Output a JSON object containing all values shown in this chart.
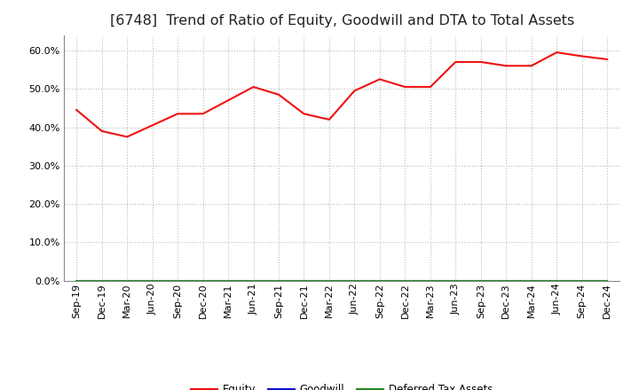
{
  "title": "[6748]  Trend of Ratio of Equity, Goodwill and DTA to Total Assets",
  "x_labels": [
    "Sep-19",
    "Dec-19",
    "Mar-20",
    "Jun-20",
    "Sep-20",
    "Dec-20",
    "Mar-21",
    "Jun-21",
    "Sep-21",
    "Dec-21",
    "Mar-22",
    "Jun-22",
    "Sep-22",
    "Dec-22",
    "Mar-23",
    "Jun-23",
    "Sep-23",
    "Dec-23",
    "Mar-24",
    "Jun-24",
    "Sep-24",
    "Dec-24"
  ],
  "equity": [
    0.445,
    0.39,
    0.375,
    0.405,
    0.435,
    0.435,
    0.47,
    0.505,
    0.485,
    0.435,
    0.42,
    0.495,
    0.525,
    0.505,
    0.505,
    0.57,
    0.57,
    0.56,
    0.56,
    0.595,
    0.585,
    0.577
  ],
  "goodwill": [
    0.0,
    0.0,
    0.0,
    0.0,
    0.0,
    0.0,
    0.0,
    0.0,
    0.0,
    0.0,
    0.0,
    0.0,
    0.0,
    0.0,
    0.0,
    0.0,
    0.0,
    0.0,
    0.0,
    0.0,
    0.0,
    0.0
  ],
  "dta": [
    0.0,
    0.0,
    0.0,
    0.0,
    0.0,
    0.0,
    0.0,
    0.0,
    0.0,
    0.0,
    0.0,
    0.0,
    0.0,
    0.0,
    0.0,
    0.0,
    0.0,
    0.0,
    0.0,
    0.0,
    0.0,
    0.0
  ],
  "equity_color": "#EE1111",
  "goodwill_color": "#1111CC",
  "dta_color": "#228822",
  "ylim": [
    0.0,
    0.64
  ],
  "yticks": [
    0.0,
    0.1,
    0.2,
    0.3,
    0.4,
    0.5,
    0.6
  ],
  "background_color": "#FFFFFF",
  "plot_bg_color": "#FFFFFF",
  "grid_color": "#BBBBBB",
  "title_fontsize": 11.5,
  "tick_fontsize": 8,
  "legend_labels": [
    "Equity",
    "Goodwill",
    "Deferred Tax Assets"
  ]
}
